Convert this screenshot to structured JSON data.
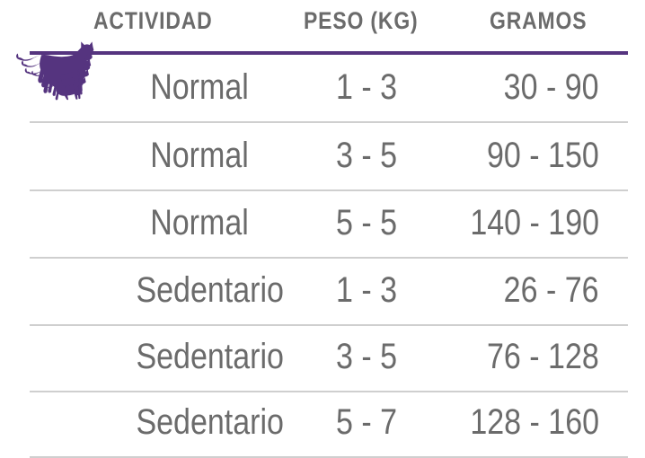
{
  "header": {
    "activity": "ACTIVIDAD",
    "weight": "PESO (KG)",
    "grams": "GRAMOS"
  },
  "colors": {
    "accent": "#55347f",
    "text": "#6b6b6b",
    "divider": "#cfcfcf"
  },
  "icon": "cat-icon",
  "rows": [
    {
      "activity": "Normal",
      "weight": "1 - 3",
      "grams": "30 - 90"
    },
    {
      "activity": "Normal",
      "weight": "3 - 5",
      "grams": "90 - 150"
    },
    {
      "activity": "Normal",
      "weight": "5 - 5",
      "grams": "140 - 190"
    },
    {
      "activity": "Sedentario",
      "weight": "1 - 3",
      "grams": "26 - 76"
    },
    {
      "activity": "Sedentario",
      "weight": "3 - 5",
      "grams": "76 - 128"
    },
    {
      "activity": "Sedentario",
      "weight": "5 - 7",
      "grams": "128 - 160"
    }
  ]
}
